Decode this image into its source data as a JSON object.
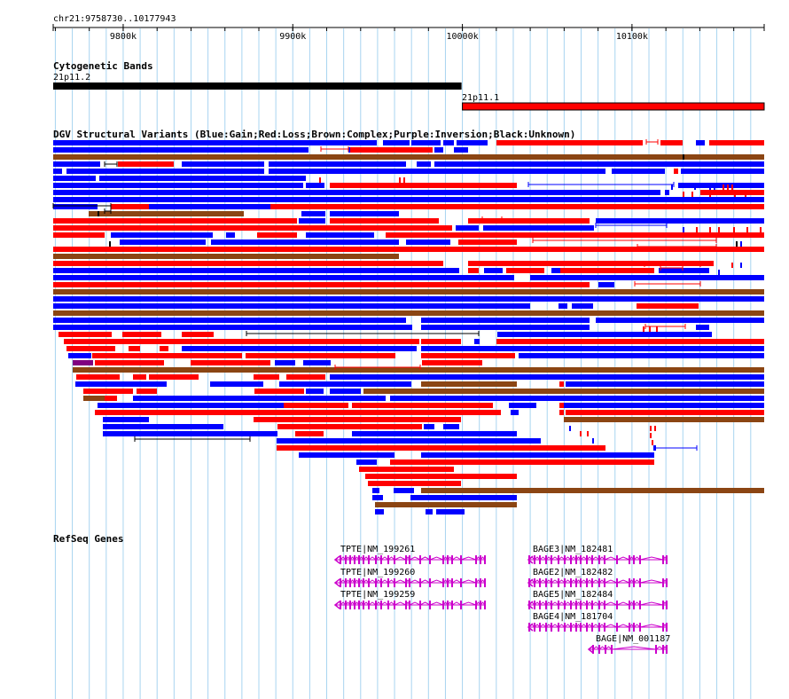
{
  "region": "chr21:9758730..10177943",
  "range": [
    9758730,
    10177943
  ],
  "ticks": [
    {
      "pos": 9800000,
      "label": "9800k"
    },
    {
      "pos": 9900000,
      "label": "9900k"
    },
    {
      "pos": 10000000,
      "label": "10000k"
    },
    {
      "pos": 10100000,
      "label": "10100k"
    }
  ],
  "tracks": {
    "cytobands": {
      "title": "Cytogenetic Bands",
      "bands": [
        {
          "name": "21p11.2",
          "start": 9758730,
          "end": 9999500,
          "color": "#000000"
        },
        {
          "name": "21p11.1",
          "start": 10000000,
          "end": 10177943,
          "color": "#ff0000"
        }
      ]
    },
    "dgv": {
      "title": "DGV Structural Variants (Blue:Gain;Red:Loss;Brown:Complex;Purple:Inversion;Black:Unknown)",
      "colors": {
        "gain": "#0000ff",
        "loss": "#ff0000",
        "complex": "#8b4513",
        "inversion": "#800080",
        "unknown": "#000000"
      }
    },
    "refseq": {
      "title": "RefSeq Genes",
      "genes": [
        {
          "label": "TPTE|NM_199261",
          "strand": "-"
        },
        {
          "label": "TPTE|NM_199260",
          "strand": "-"
        },
        {
          "label": "TPTE|NM_199259",
          "strand": "-"
        },
        {
          "label": "BAGE3|NM_182481",
          "strand": "-"
        },
        {
          "label": "BAGE2|NM_182482",
          "strand": "-"
        },
        {
          "label": "BAGE5|NM_182484",
          "strand": "-"
        },
        {
          "label": "BAGE4|NM_181704",
          "strand": "-"
        },
        {
          "label": "BAGE|NM_001187",
          "strand": "-"
        }
      ],
      "color": "#cc00cc"
    }
  }
}
